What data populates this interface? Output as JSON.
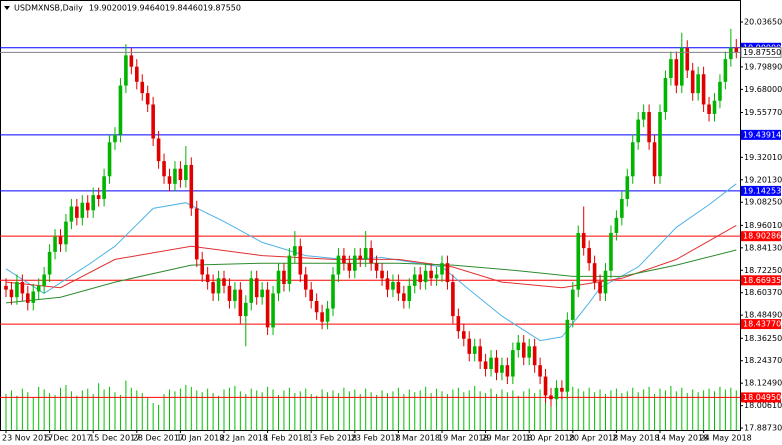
{
  "chart_data": {
    "type": "candlestick",
    "title": "USDMXNSB,Daily",
    "ohlc_labels": [
      "19.90200",
      "19.94640",
      "19.84460",
      "19.87550"
    ],
    "color_up": "#00b400",
    "color_down": "#e00000",
    "volume_color": "#00c000",
    "ylim": [
      17.877,
      20.153
    ],
    "yticks": [
      {
        "value": 20.0365,
        "label": "20.03650"
      },
      {
        "value": 19.7989,
        "label": "19.79890"
      },
      {
        "value": 19.68,
        "label": "19.68000"
      },
      {
        "value": 19.5577,
        "label": "19.55770"
      },
      {
        "value": 19.3201,
        "label": "19.32010"
      },
      {
        "value": 19.2013,
        "label": "19.20130"
      },
      {
        "value": 19.0825,
        "label": "19.08250"
      },
      {
        "value": 18.9601,
        "label": "18.96010"
      },
      {
        "value": 18.8413,
        "label": "18.84130"
      },
      {
        "value": 18.7225,
        "label": "18.72250"
      },
      {
        "value": 18.6037,
        "label": "18.60370"
      },
      {
        "value": 18.4849,
        "label": "18.48490"
      },
      {
        "value": 18.3625,
        "label": "18.36250"
      },
      {
        "value": 18.2437,
        "label": "18.24370"
      },
      {
        "value": 18.1249,
        "label": "18.12490"
      },
      {
        "value": 18.0061,
        "label": "18.00610"
      },
      {
        "value": 17.8873,
        "label": "17.88730"
      }
    ],
    "levels": [
      {
        "value": 19.9,
        "label": "19.90000",
        "color": "#0000ff"
      },
      {
        "value": 19.43914,
        "label": "19.43914",
        "color": "#0000ff"
      },
      {
        "value": 19.14253,
        "label": "19.14253",
        "color": "#0000ff"
      },
      {
        "value": 18.90286,
        "label": "18.90286",
        "color": "#ff0000"
      },
      {
        "value": 18.66935,
        "label": "18.66935",
        "color": "#ff0000"
      },
      {
        "value": 18.4377,
        "label": "18.43770",
        "color": "#ff0000"
      },
      {
        "value": 18.0495,
        "label": "18.04950",
        "color": "#ff0000"
      }
    ],
    "categories": [
      "23 Nov 2017",
      null,
      null,
      null,
      null,
      null,
      null,
      null,
      "5 Dec 2017",
      null,
      null,
      null,
      null,
      null,
      null,
      null,
      "15 Dec 2017",
      null,
      null,
      null,
      null,
      null,
      null,
      null,
      "28 Dec 2017",
      null,
      null,
      null,
      null,
      null,
      null,
      null,
      "10 Jan 2018",
      null,
      null,
      null,
      null,
      null,
      null,
      null,
      "22 Jan 2018",
      null,
      null,
      null,
      null,
      null,
      null,
      null,
      "1 Feb 2018",
      null,
      null,
      null,
      null,
      null,
      null,
      null,
      "13 Feb 2018",
      null,
      null,
      null,
      null,
      null,
      null,
      null,
      "23 Feb 2018",
      null,
      null,
      null,
      null,
      null,
      null,
      null,
      "7 Mar 2018",
      null,
      null,
      null,
      null,
      null,
      null,
      null,
      "19 Mar 2018",
      null,
      null,
      null,
      null,
      null,
      null,
      null,
      "29 Mar 2018",
      null,
      null,
      null,
      null,
      null,
      null,
      null,
      "10 Apr 2018",
      null,
      null,
      null,
      null,
      null,
      null,
      null,
      "20 Apr 2018",
      null,
      null,
      null,
      null,
      null,
      null,
      null,
      "2 May 2018",
      null,
      null,
      null,
      null,
      null,
      null,
      null,
      "14 May 2018",
      null,
      null,
      null,
      null,
      null,
      null,
      null,
      "24 May 2018",
      null,
      null,
      null,
      null,
      null,
      null
    ],
    "open": [
      18.64,
      18.62,
      18.58,
      18.66,
      18.6,
      18.55,
      18.61,
      18.64,
      18.7,
      18.82,
      18.9,
      18.86,
      18.98,
      19.06,
      19.0,
      19.08,
      19.04,
      19.12,
      19.1,
      19.22,
      19.4,
      19.44,
      19.7,
      19.86,
      19.8,
      19.72,
      19.66,
      19.6,
      19.42,
      19.3,
      19.22,
      19.18,
      19.26,
      19.2,
      19.28,
      19.05,
      18.78,
      18.7,
      18.66,
      18.6,
      18.68,
      18.64,
      18.56,
      18.62,
      18.48,
      18.55,
      18.68,
      18.58,
      18.62,
      18.42,
      18.6,
      18.72,
      18.65,
      18.8,
      18.85,
      18.7,
      18.62,
      18.56,
      18.5,
      18.45,
      18.52,
      18.7,
      18.8,
      18.76,
      18.72,
      18.8,
      18.78,
      18.84,
      18.76,
      18.72,
      18.68,
      18.62,
      18.66,
      18.6,
      18.56,
      18.64,
      18.7,
      18.66,
      18.72,
      18.68,
      18.7,
      18.76,
      18.66,
      18.48,
      18.4,
      18.36,
      18.28,
      18.32,
      18.24,
      18.2,
      18.26,
      18.18,
      18.22,
      18.16,
      18.3,
      18.34,
      18.26,
      18.32,
      18.22,
      18.16,
      18.06,
      18.04,
      18.1,
      18.08,
      18.46,
      18.62,
      18.92,
      18.84,
      18.76,
      18.66,
      18.6,
      18.72,
      18.92,
      19.0,
      19.1,
      19.22,
      19.4,
      19.52,
      19.56,
      19.4,
      19.22,
      19.56,
      19.74,
      19.84,
      19.7,
      19.9,
      19.78,
      19.66,
      19.76,
      19.6,
      19.55,
      19.62,
      19.72,
      19.84,
      19.902
    ],
    "high": [
      18.68,
      18.66,
      18.7,
      18.7,
      18.64,
      18.65,
      18.68,
      18.74,
      18.86,
      18.94,
      18.94,
      19.02,
      19.1,
      19.1,
      19.12,
      19.12,
      19.16,
      19.16,
      19.26,
      19.44,
      19.48,
      19.74,
      19.92,
      19.9,
      19.84,
      19.76,
      19.7,
      19.64,
      19.46,
      19.34,
      19.26,
      19.3,
      19.3,
      19.38,
      19.32,
      19.09,
      18.82,
      18.74,
      18.7,
      18.72,
      18.72,
      18.68,
      18.66,
      18.66,
      18.59,
      18.72,
      18.72,
      18.66,
      18.66,
      18.64,
      18.76,
      18.76,
      18.84,
      18.93,
      18.89,
      18.74,
      18.66,
      18.6,
      18.54,
      18.56,
      18.74,
      18.84,
      18.84,
      18.8,
      18.84,
      18.84,
      18.93,
      18.88,
      18.8,
      18.76,
      18.72,
      18.7,
      18.7,
      18.64,
      18.68,
      18.74,
      18.74,
      18.76,
      18.76,
      18.74,
      18.8,
      18.8,
      18.7,
      18.52,
      18.44,
      18.4,
      18.36,
      18.36,
      18.28,
      18.3,
      18.3,
      18.26,
      18.26,
      18.34,
      18.38,
      18.38,
      18.36,
      18.36,
      18.26,
      18.2,
      18.1,
      18.14,
      18.14,
      18.5,
      18.66,
      18.96,
      19.06,
      18.88,
      18.8,
      18.7,
      18.76,
      18.96,
      19.04,
      19.14,
      19.26,
      19.44,
      19.56,
      19.6,
      19.6,
      19.44,
      19.6,
      19.78,
      19.88,
      19.88,
      19.98,
      19.94,
      19.82,
      19.8,
      19.8,
      19.64,
      19.66,
      19.76,
      19.88,
      20.0,
      19.9464
    ],
    "low": [
      18.58,
      18.54,
      18.54,
      18.56,
      18.51,
      18.51,
      18.57,
      18.6,
      18.66,
      18.78,
      18.82,
      18.82,
      18.94,
      18.96,
      18.96,
      19.0,
      19.0,
      19.06,
      19.06,
      19.18,
      19.36,
      19.4,
      19.66,
      19.76,
      19.68,
      19.62,
      19.56,
      19.38,
      19.26,
      19.18,
      19.14,
      19.14,
      19.16,
      19.16,
      19.01,
      18.74,
      18.66,
      18.62,
      18.56,
      18.56,
      18.6,
      18.52,
      18.52,
      18.44,
      18.32,
      18.51,
      18.54,
      18.54,
      18.38,
      18.38,
      18.56,
      18.61,
      18.61,
      18.76,
      18.66,
      18.58,
      18.52,
      18.46,
      18.41,
      18.41,
      18.48,
      18.66,
      18.72,
      18.68,
      18.68,
      18.74,
      18.74,
      18.72,
      18.68,
      18.64,
      18.58,
      18.58,
      18.56,
      18.52,
      18.52,
      18.6,
      18.62,
      18.62,
      18.64,
      18.64,
      18.66,
      18.62,
      18.44,
      18.36,
      18.32,
      18.24,
      18.24,
      18.2,
      18.16,
      18.16,
      18.14,
      18.14,
      18.12,
      18.12,
      18.26,
      18.22,
      18.22,
      18.18,
      18.12,
      18.02,
      18.0,
      18.0,
      18.04,
      18.04,
      18.42,
      18.58,
      18.8,
      18.72,
      18.62,
      18.56,
      18.56,
      18.68,
      18.88,
      18.96,
      19.06,
      19.18,
      19.36,
      19.48,
      19.36,
      19.18,
      19.18,
      19.52,
      19.7,
      19.66,
      19.66,
      19.74,
      19.62,
      19.62,
      19.56,
      19.51,
      19.51,
      19.58,
      19.68,
      19.8,
      19.8446
    ],
    "close": [
      18.62,
      18.58,
      18.66,
      18.6,
      18.55,
      18.61,
      18.64,
      18.7,
      18.82,
      18.9,
      18.86,
      18.98,
      19.06,
      19.0,
      19.08,
      19.04,
      19.12,
      19.1,
      19.22,
      19.4,
      19.44,
      19.7,
      19.86,
      19.8,
      19.72,
      19.66,
      19.6,
      19.42,
      19.3,
      19.22,
      19.18,
      19.26,
      19.2,
      19.28,
      19.05,
      18.78,
      18.7,
      18.66,
      18.6,
      18.68,
      18.64,
      18.56,
      18.62,
      18.48,
      18.55,
      18.68,
      18.58,
      18.62,
      18.42,
      18.6,
      18.72,
      18.65,
      18.8,
      18.85,
      18.7,
      18.62,
      18.56,
      18.5,
      18.45,
      18.52,
      18.7,
      18.8,
      18.76,
      18.72,
      18.8,
      18.78,
      18.84,
      18.76,
      18.72,
      18.68,
      18.62,
      18.66,
      18.6,
      18.56,
      18.64,
      18.7,
      18.66,
      18.72,
      18.68,
      18.7,
      18.76,
      18.66,
      18.48,
      18.4,
      18.36,
      18.28,
      18.32,
      18.24,
      18.2,
      18.26,
      18.18,
      18.22,
      18.16,
      18.3,
      18.34,
      18.26,
      18.32,
      18.22,
      18.16,
      18.06,
      18.04,
      18.1,
      18.08,
      18.46,
      18.62,
      18.92,
      18.84,
      18.76,
      18.66,
      18.6,
      18.72,
      18.92,
      19.0,
      19.1,
      19.22,
      19.4,
      19.52,
      19.56,
      19.4,
      19.22,
      19.56,
      19.74,
      19.84,
      19.7,
      19.9,
      19.78,
      19.66,
      19.76,
      19.6,
      19.55,
      19.62,
      19.72,
      19.84,
      19.9,
      19.8755
    ],
    "volume": [
      40,
      44,
      38,
      46,
      42,
      36,
      48,
      45,
      41,
      39,
      47,
      50,
      43,
      38,
      44,
      46,
      40,
      52,
      45,
      48,
      42,
      39,
      55,
      47,
      44,
      41,
      36,
      30,
      28,
      40,
      45,
      43,
      46,
      50,
      48,
      44,
      42,
      46,
      41,
      38,
      45,
      47,
      49,
      43,
      40,
      46,
      44,
      42,
      48,
      45,
      39,
      44,
      47,
      41,
      43,
      46,
      40,
      38,
      45,
      42,
      44,
      41,
      47,
      43,
      45,
      40,
      46,
      42,
      39,
      44,
      41,
      43,
      47,
      40,
      45,
      42,
      44,
      48,
      41,
      46,
      43,
      40,
      45,
      47,
      42,
      44,
      49,
      43,
      41,
      46,
      40,
      45,
      42,
      44,
      38,
      43,
      46,
      41,
      45,
      40,
      35,
      33,
      37,
      44,
      48,
      46,
      43,
      47,
      42,
      45,
      40,
      44,
      46,
      41,
      43,
      47,
      42,
      45,
      48,
      40,
      46,
      44,
      49,
      43,
      47,
      41,
      45,
      42,
      44,
      46,
      43,
      48,
      45,
      47,
      44
    ],
    "moving_averages": [
      {
        "color": "#4fb3e8",
        "x": [
          0,
          7,
          15,
          20,
          27,
          33,
          40,
          47,
          55,
          62,
          69,
          80,
          85,
          91,
          98,
          102,
          107,
          109,
          116,
          123,
          129,
          134
        ],
        "values": [
          18.73,
          18.6,
          18.75,
          18.85,
          19.05,
          19.08,
          18.98,
          18.87,
          18.8,
          18.78,
          18.79,
          18.74,
          18.62,
          18.48,
          18.35,
          18.37,
          18.55,
          18.63,
          18.74,
          18.95,
          19.07,
          19.18
        ]
      },
      {
        "color": "#e03030",
        "x": [
          0,
          10,
          20,
          34,
          47,
          60,
          72,
          82,
          91,
          102,
          113,
          123,
          134
        ],
        "values": [
          18.66,
          18.63,
          18.78,
          18.85,
          18.8,
          18.78,
          18.78,
          18.74,
          18.66,
          18.63,
          18.68,
          18.78,
          18.96
        ]
      },
      {
        "color": "#2e8b2e",
        "x": [
          0,
          10,
          20,
          34,
          47,
          60,
          72,
          82,
          94,
          104,
          113,
          123,
          134
        ],
        "values": [
          18.55,
          18.58,
          18.66,
          18.75,
          18.76,
          18.76,
          18.76,
          18.75,
          18.72,
          18.69,
          18.69,
          18.75,
          18.83
        ]
      }
    ]
  }
}
